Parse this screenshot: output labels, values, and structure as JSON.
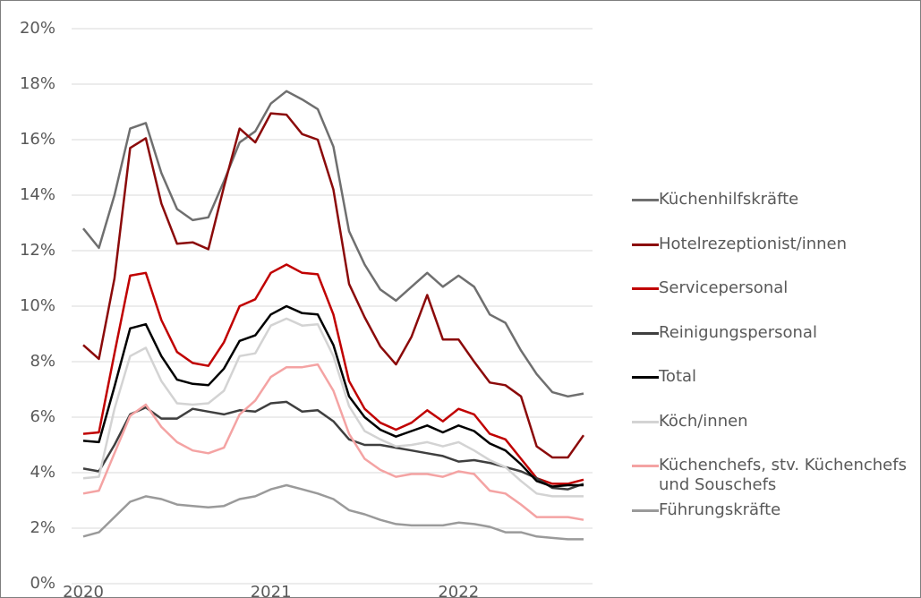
{
  "chart_data": {
    "type": "line",
    "categories": [
      "2020",
      null,
      null,
      null,
      null,
      null,
      null,
      null,
      null,
      null,
      null,
      null,
      "2021",
      null,
      null,
      null,
      null,
      null,
      null,
      null,
      null,
      null,
      null,
      null,
      "2022",
      null,
      null,
      null,
      null,
      null,
      null,
      null,
      null
    ],
    "ylim": [
      0,
      20
    ],
    "yticks": [
      {
        "value": 0,
        "label": "0%"
      },
      {
        "value": 2,
        "label": "2%"
      },
      {
        "value": 4,
        "label": "4%"
      },
      {
        "value": 6,
        "label": "6%"
      },
      {
        "value": 8,
        "label": "8%"
      },
      {
        "value": 10,
        "label": "10%"
      },
      {
        "value": 12,
        "label": "12%"
      },
      {
        "value": 14,
        "label": "14%"
      },
      {
        "value": 16,
        "label": "16%"
      },
      {
        "value": 18,
        "label": "18%"
      },
      {
        "value": 20,
        "label": "20%"
      }
    ],
    "grid": true,
    "series": [
      {
        "name": "Küchenhilfskräfte",
        "color": "#6f6f6f",
        "values": [
          12.8,
          12.1,
          14,
          16.4,
          16.6,
          14.8,
          13.5,
          13.1,
          13.2,
          14.5,
          15.9,
          16.3,
          17.3,
          17.75,
          17.45,
          17.1,
          15.75,
          12.7,
          11.5,
          10.6,
          10.2,
          10.7,
          11.2,
          10.7,
          11.1,
          10.7,
          9.7,
          9.4,
          8.4,
          7.55,
          6.9,
          6.75,
          6.85
        ]
      },
      {
        "name": "Hotelrezeptionist/innen",
        "color": "#8b0a0a",
        "values": [
          8.6,
          8.1,
          11,
          15.7,
          16.05,
          13.7,
          12.25,
          12.3,
          12.05,
          14.3,
          16.4,
          15.9,
          16.95,
          16.9,
          16.2,
          16,
          14.2,
          10.8,
          9.6,
          8.55,
          7.9,
          8.9,
          10.4,
          8.8,
          8.8,
          8,
          7.25,
          7.15,
          6.75,
          4.95,
          4.55,
          4.55,
          5.35
        ]
      },
      {
        "name": "Servicepersonal",
        "color": "#c00000",
        "values": [
          5.4,
          5.45,
          8.3,
          11.1,
          11.2,
          9.5,
          8.35,
          7.95,
          7.85,
          8.7,
          10,
          10.25,
          11.2,
          11.5,
          11.2,
          11.15,
          9.7,
          7.3,
          6.3,
          5.8,
          5.55,
          5.8,
          6.25,
          5.85,
          6.3,
          6.1,
          5.4,
          5.2,
          4.5,
          3.8,
          3.6,
          3.6,
          3.75
        ]
      },
      {
        "name": "Reinigungspersonal",
        "color": "#3f3f3f",
        "values": [
          4.15,
          4.05,
          5,
          6.1,
          6.35,
          5.95,
          5.95,
          6.3,
          6.2,
          6.1,
          6.25,
          6.2,
          6.5,
          6.55,
          6.2,
          6.25,
          5.85,
          5.2,
          5,
          5,
          4.9,
          4.8,
          4.7,
          4.6,
          4.4,
          4.45,
          4.35,
          4.2,
          4.05,
          3.8,
          3.45,
          3.4,
          3.6
        ]
      },
      {
        "name": "Total",
        "color": "#000000",
        "values": [
          5.15,
          5.1,
          7.1,
          9.2,
          9.35,
          8.2,
          7.35,
          7.2,
          7.15,
          7.75,
          8.75,
          8.95,
          9.7,
          10,
          9.75,
          9.7,
          8.6,
          6.75,
          6,
          5.55,
          5.3,
          5.5,
          5.7,
          5.45,
          5.7,
          5.5,
          5.05,
          4.8,
          4.3,
          3.7,
          3.5,
          3.55,
          3.55
        ]
      },
      {
        "name": "Köch/innen",
        "color": "#d3d3d3",
        "values": [
          3.8,
          3.85,
          6.3,
          8.2,
          8.5,
          7.3,
          6.5,
          6.45,
          6.5,
          6.95,
          8.2,
          8.3,
          9.3,
          9.55,
          9.3,
          9.35,
          8.2,
          6.4,
          5.5,
          5.2,
          4.95,
          5,
          5.1,
          4.95,
          5.1,
          4.8,
          4.45,
          4.2,
          3.7,
          3.25,
          3.15,
          3.15,
          3.15
        ]
      },
      {
        "name": "Küchenchefs, stv. Küchenchefs und Souschefs",
        "color": "#f4a3a3",
        "values": [
          3.25,
          3.35,
          4.7,
          6.05,
          6.45,
          5.65,
          5.1,
          4.8,
          4.7,
          4.9,
          6.1,
          6.6,
          7.45,
          7.8,
          7.8,
          7.9,
          6.95,
          5.4,
          4.5,
          4.1,
          3.85,
          3.95,
          3.95,
          3.85,
          4.05,
          3.95,
          3.35,
          3.25,
          2.85,
          2.4,
          2.4,
          2.4,
          2.3
        ]
      },
      {
        "name": "Führungskräfte",
        "color": "#9a9a9a",
        "values": [
          1.7,
          1.85,
          2.4,
          2.95,
          3.15,
          3.05,
          2.85,
          2.8,
          2.75,
          2.8,
          3.05,
          3.15,
          3.4,
          3.55,
          3.4,
          3.25,
          3.05,
          2.65,
          2.5,
          2.3,
          2.15,
          2.1,
          2.1,
          2.1,
          2.2,
          2.15,
          2.05,
          1.85,
          1.85,
          1.7,
          1.65,
          1.6,
          1.6
        ]
      }
    ]
  }
}
